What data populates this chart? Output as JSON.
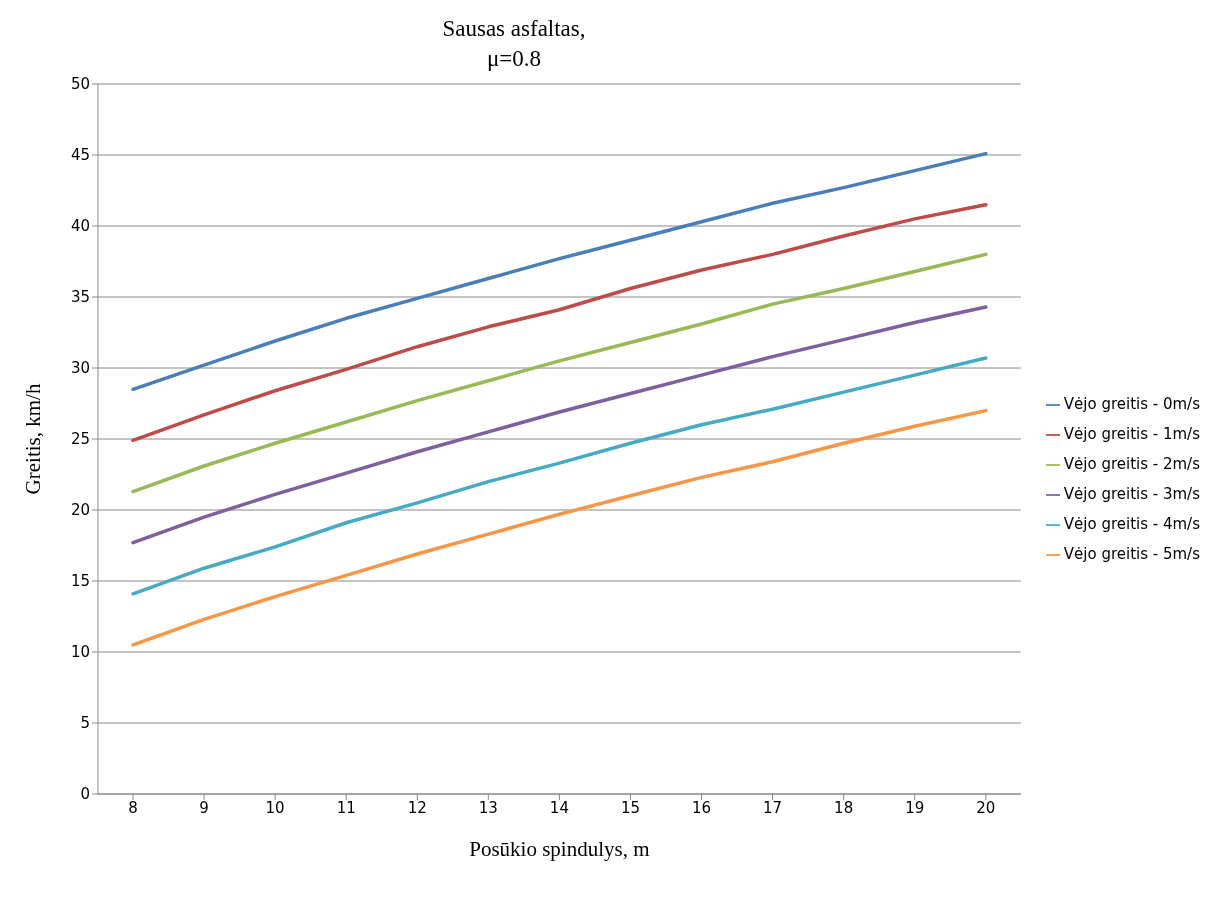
{
  "chart_data": {
    "type": "line",
    "title": "Sausas asfaltas,\nμ=0.8",
    "xlabel": "Posūkio spindulys,  m",
    "ylabel": "Greitis,  km/h",
    "categories": [
      "8",
      "9",
      "10",
      "11",
      "12",
      "13",
      "14",
      "15",
      "16",
      "17",
      "18",
      "19",
      "20"
    ],
    "series": [
      {
        "name": "Vėjo greitis - 0m/s",
        "color": "#4a7ebb",
        "values": [
          28.5,
          30.2,
          31.9,
          33.5,
          34.9,
          36.3,
          37.7,
          39.0,
          40.3,
          41.6,
          42.7,
          43.9,
          45.1
        ]
      },
      {
        "name": "Vėjo greitis - 1m/s",
        "color": "#be4b48",
        "values": [
          24.9,
          26.7,
          28.4,
          29.9,
          31.5,
          32.9,
          34.1,
          35.6,
          36.9,
          38.0,
          39.3,
          40.5,
          41.5
        ]
      },
      {
        "name": "Vėjo greitis - 2m/s",
        "color": "#98b954",
        "values": [
          21.3,
          23.1,
          24.7,
          26.2,
          27.7,
          29.1,
          30.5,
          31.8,
          33.1,
          34.5,
          35.6,
          36.8,
          38.0
        ]
      },
      {
        "name": "Vėjo greitis - 3m/s",
        "color": "#7d60a0",
        "values": [
          17.7,
          19.5,
          21.1,
          22.6,
          24.1,
          25.5,
          26.9,
          28.2,
          29.5,
          30.8,
          32.0,
          33.2,
          34.3
        ]
      },
      {
        "name": "Vėjo greitis - 4m/s",
        "color": "#46aac5",
        "values": [
          14.1,
          15.9,
          17.4,
          19.1,
          20.5,
          22.0,
          23.3,
          24.7,
          26.0,
          27.1,
          28.3,
          29.5,
          30.7
        ]
      },
      {
        "name": "Vėjo greitis - 5m/s",
        "color": "#f79646",
        "values": [
          10.5,
          12.3,
          13.9,
          15.4,
          16.9,
          18.3,
          19.7,
          21.0,
          22.3,
          23.4,
          24.7,
          25.9,
          27.0
        ]
      }
    ],
    "ylim": [
      0,
      50
    ],
    "yticks": [
      0,
      5,
      10,
      15,
      20,
      25,
      30,
      35,
      40,
      45,
      50
    ],
    "grid": "y",
    "legend": "right",
    "marker": "none",
    "line_style": "solid"
  }
}
